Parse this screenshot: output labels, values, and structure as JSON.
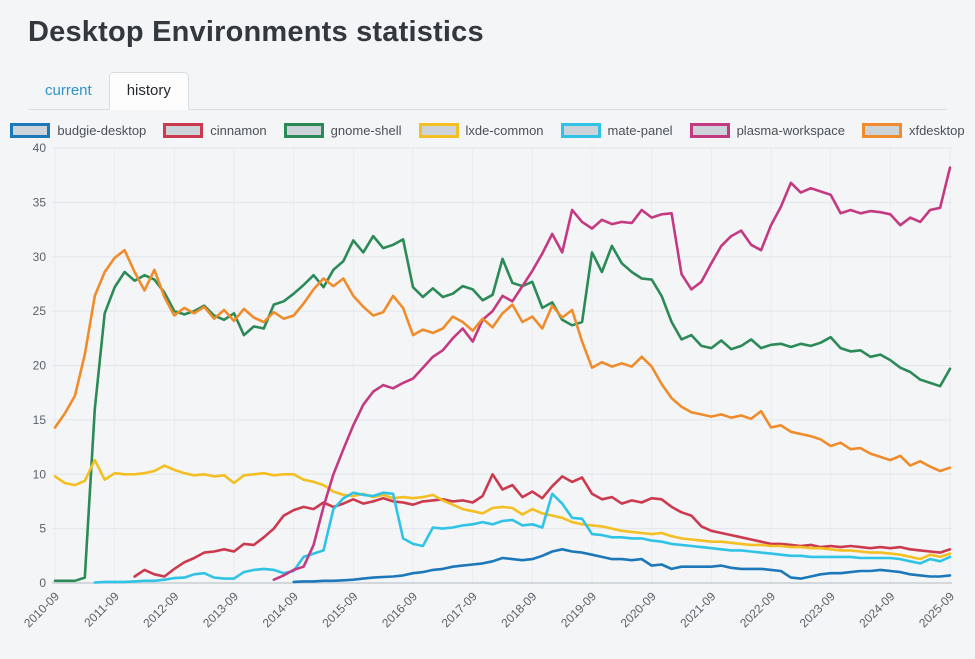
{
  "header": {
    "title": "Desktop Environments statistics"
  },
  "tabs": [
    {
      "label": "current",
      "active": false
    },
    {
      "label": "history",
      "active": true
    }
  ],
  "ui_colors": {
    "page_bg": "#f3f5f7",
    "tab_link_text": "#2e94ca",
    "tab_active_text": "#25282c",
    "title_text": "#33383e",
    "axis_text": "#5a6268",
    "grid_line": "#e2e6ea",
    "axis_line": "#c7cdd3",
    "legend_swatch_fill": "#ccd3d9"
  },
  "chart_data": {
    "type": "line",
    "title": "",
    "xlabel": "",
    "ylabel": "",
    "x_start": "2010-09",
    "x_end": "2025-09",
    "sample_interval_months": 2,
    "x_tick_labels": [
      "2010-09",
      "2011-09",
      "2012-09",
      "2013-09",
      "2014-09",
      "2015-09",
      "2016-09",
      "2017-09",
      "2018-09",
      "2019-09",
      "2020-09",
      "2021-09",
      "2022-09",
      "2023-09",
      "2024-09",
      "2025-09"
    ],
    "y_ticks": [
      0,
      5,
      10,
      15,
      20,
      25,
      30,
      35,
      40
    ],
    "ylim": [
      0,
      40
    ],
    "grid": true,
    "legend_position": "top",
    "series": [
      {
        "name": "budgie-desktop",
        "color": "#1d78ba",
        "values": [
          null,
          null,
          null,
          null,
          null,
          null,
          null,
          null,
          null,
          null,
          null,
          null,
          null,
          null,
          null,
          null,
          null,
          null,
          null,
          null,
          null,
          null,
          null,
          null,
          0.1,
          0.15,
          0.15,
          0.2,
          0.2,
          0.25,
          0.3,
          0.4,
          0.5,
          0.55,
          0.6,
          0.7,
          0.9,
          1.0,
          1.2,
          1.3,
          1.5,
          1.6,
          1.7,
          1.8,
          2.0,
          2.3,
          2.2,
          2.1,
          2.2,
          2.5,
          2.9,
          3.1,
          2.9,
          2.8,
          2.6,
          2.4,
          2.2,
          2.2,
          2.1,
          2.2,
          1.6,
          1.7,
          1.3,
          1.5,
          1.5,
          1.5,
          1.5,
          1.6,
          1.4,
          1.3,
          1.3,
          1.3,
          1.2,
          1.1,
          0.5,
          0.4,
          0.6,
          0.8,
          0.9,
          0.9,
          1.0,
          1.1,
          1.1,
          1.2,
          1.1,
          1.0,
          0.8,
          0.7,
          0.6,
          0.6,
          0.7
        ]
      },
      {
        "name": "cinnamon",
        "color": "#cb3a4e",
        "values": [
          null,
          null,
          null,
          null,
          null,
          null,
          null,
          null,
          0.6,
          1.2,
          0.8,
          0.6,
          1.3,
          1.9,
          2.3,
          2.8,
          2.9,
          3.1,
          2.9,
          3.6,
          3.5,
          4.2,
          5.0,
          6.2,
          6.7,
          7.0,
          6.8,
          7.4,
          7.0,
          7.3,
          7.7,
          7.3,
          7.5,
          7.8,
          7.5,
          7.4,
          7.2,
          7.5,
          7.6,
          7.7,
          7.5,
          7.6,
          7.4,
          8.0,
          10.0,
          8.6,
          9.0,
          7.9,
          8.4,
          7.8,
          8.9,
          9.8,
          9.3,
          9.7,
          8.2,
          7.7,
          7.9,
          7.3,
          7.6,
          7.4,
          7.8,
          7.7,
          7.0,
          6.5,
          6.2,
          5.2,
          4.8,
          4.6,
          4.4,
          4.2,
          4.0,
          3.8,
          3.6,
          3.6,
          3.5,
          3.4,
          3.5,
          3.3,
          3.4,
          3.3,
          3.4,
          3.3,
          3.2,
          3.3,
          3.2,
          3.3,
          3.1,
          3.0,
          2.9,
          2.8,
          3.1
        ]
      },
      {
        "name": "gnome-shell",
        "color": "#2c8a57",
        "values": [
          0.2,
          0.2,
          0.2,
          0.5,
          16.0,
          24.8,
          27.2,
          28.6,
          27.8,
          28.3,
          27.9,
          26.7,
          25.0,
          24.7,
          25.0,
          25.5,
          24.6,
          24.2,
          24.8,
          22.8,
          23.6,
          23.4,
          25.6,
          25.9,
          26.6,
          27.4,
          28.3,
          27.2,
          28.8,
          29.6,
          31.5,
          30.4,
          31.9,
          30.8,
          31.1,
          31.6,
          27.2,
          26.3,
          27.1,
          26.3,
          26.6,
          27.3,
          27.0,
          26.0,
          26.5,
          29.8,
          27.6,
          27.3,
          27.7,
          25.3,
          25.8,
          24.2,
          23.7,
          24.0,
          30.4,
          28.6,
          31.0,
          29.4,
          28.6,
          28.0,
          27.9,
          26.4,
          24.0,
          22.4,
          22.8,
          21.8,
          21.6,
          22.3,
          21.5,
          21.8,
          22.4,
          21.6,
          21.9,
          22.0,
          21.7,
          22.0,
          21.8,
          22.1,
          22.6,
          21.6,
          21.3,
          21.4,
          20.8,
          21.0,
          20.5,
          19.8,
          19.4,
          18.7,
          18.4,
          18.1,
          19.7
        ]
      },
      {
        "name": "lxde-common",
        "color": "#f3bf22",
        "values": [
          9.8,
          9.2,
          9.0,
          9.4,
          11.3,
          9.5,
          10.1,
          10.0,
          10.0,
          10.1,
          10.3,
          10.8,
          10.4,
          10.1,
          9.9,
          10.0,
          9.8,
          9.9,
          9.2,
          9.9,
          10.0,
          10.1,
          9.9,
          10.0,
          10.0,
          9.5,
          9.3,
          9.0,
          8.4,
          8.1,
          8.0,
          8.2,
          7.9,
          8.1,
          7.8,
          7.9,
          7.8,
          7.9,
          8.1,
          7.6,
          7.2,
          6.8,
          6.6,
          6.4,
          6.9,
          7.0,
          6.9,
          6.3,
          6.8,
          6.4,
          6.2,
          6.0,
          5.6,
          5.4,
          5.3,
          5.2,
          5.0,
          4.8,
          4.7,
          4.6,
          4.5,
          4.6,
          4.3,
          4.1,
          4.0,
          3.9,
          3.8,
          3.8,
          3.7,
          3.6,
          3.5,
          3.5,
          3.4,
          3.4,
          3.3,
          3.3,
          3.2,
          3.2,
          3.1,
          3.0,
          3.0,
          2.9,
          2.8,
          2.8,
          2.7,
          2.6,
          2.4,
          2.2,
          2.6,
          2.4,
          2.7
        ]
      },
      {
        "name": "mate-panel",
        "color": "#30c3e6",
        "values": [
          null,
          null,
          null,
          null,
          0.05,
          0.1,
          0.1,
          0.1,
          0.15,
          0.2,
          0.2,
          0.3,
          0.45,
          0.5,
          0.8,
          0.9,
          0.5,
          0.4,
          0.4,
          1.0,
          1.2,
          1.3,
          1.2,
          0.9,
          1.1,
          2.4,
          2.7,
          3.0,
          6.8,
          7.8,
          8.3,
          8.1,
          8.0,
          8.3,
          8.2,
          4.1,
          3.6,
          3.4,
          5.1,
          5.0,
          5.1,
          5.3,
          5.4,
          5.6,
          5.4,
          5.7,
          5.8,
          5.3,
          5.4,
          5.1,
          8.2,
          7.3,
          6.0,
          5.9,
          4.5,
          4.4,
          4.2,
          4.2,
          4.1,
          4.1,
          3.9,
          3.8,
          3.6,
          3.5,
          3.4,
          3.3,
          3.2,
          3.1,
          3.0,
          3.0,
          2.9,
          2.8,
          2.7,
          2.6,
          2.5,
          2.5,
          2.4,
          2.4,
          2.4,
          2.4,
          2.4,
          2.3,
          2.3,
          2.3,
          2.3,
          2.2,
          2.0,
          1.8,
          2.2,
          2.0,
          2.4
        ]
      },
      {
        "name": "plasma-workspace",
        "color": "#c43a82",
        "values": [
          null,
          null,
          null,
          null,
          null,
          null,
          null,
          null,
          null,
          null,
          null,
          null,
          null,
          null,
          null,
          null,
          null,
          null,
          null,
          null,
          null,
          null,
          0.3,
          0.7,
          1.2,
          1.5,
          3.5,
          7.0,
          10.0,
          12.3,
          14.5,
          16.4,
          17.6,
          18.2,
          17.9,
          18.4,
          18.8,
          19.8,
          20.8,
          21.4,
          22.5,
          23.4,
          22.2,
          24.2,
          25.0,
          26.4,
          25.9,
          27.3,
          28.7,
          30.3,
          32.1,
          30.4,
          34.3,
          33.2,
          32.6,
          33.4,
          33.0,
          33.2,
          33.1,
          34.3,
          33.6,
          33.9,
          34.0,
          28.4,
          27.0,
          27.7,
          29.4,
          31.0,
          31.9,
          32.4,
          31.1,
          30.6,
          32.9,
          34.6,
          36.8,
          35.9,
          36.3,
          36.0,
          35.7,
          34.0,
          34.3,
          34.0,
          34.2,
          34.1,
          33.9,
          32.9,
          33.6,
          33.2,
          34.3,
          34.5,
          38.2
        ]
      },
      {
        "name": "xfdesktop",
        "color": "#f08c2c",
        "values": [
          14.3,
          15.6,
          17.2,
          21.0,
          26.4,
          28.6,
          29.9,
          30.6,
          28.6,
          26.9,
          28.8,
          26.3,
          24.6,
          25.3,
          24.8,
          25.4,
          24.3,
          25.1,
          24.1,
          25.2,
          24.4,
          24.0,
          24.9,
          24.3,
          24.6,
          25.7,
          27.0,
          28.0,
          27.3,
          28.0,
          26.4,
          25.4,
          24.6,
          24.9,
          26.4,
          25.3,
          22.8,
          23.3,
          23.0,
          23.4,
          24.5,
          24.0,
          23.2,
          24.3,
          23.5,
          24.8,
          25.6,
          24.0,
          24.5,
          23.4,
          25.5,
          24.4,
          25.1,
          22.2,
          19.8,
          20.3,
          19.9,
          20.2,
          19.9,
          20.8,
          19.9,
          18.3,
          17.0,
          16.2,
          15.7,
          15.5,
          15.3,
          15.5,
          15.2,
          15.4,
          15.1,
          15.8,
          14.3,
          14.5,
          13.9,
          13.7,
          13.5,
          13.2,
          12.6,
          12.9,
          12.3,
          12.4,
          11.9,
          11.6,
          11.3,
          11.7,
          10.8,
          11.2,
          10.7,
          10.3,
          10.6
        ]
      }
    ]
  }
}
